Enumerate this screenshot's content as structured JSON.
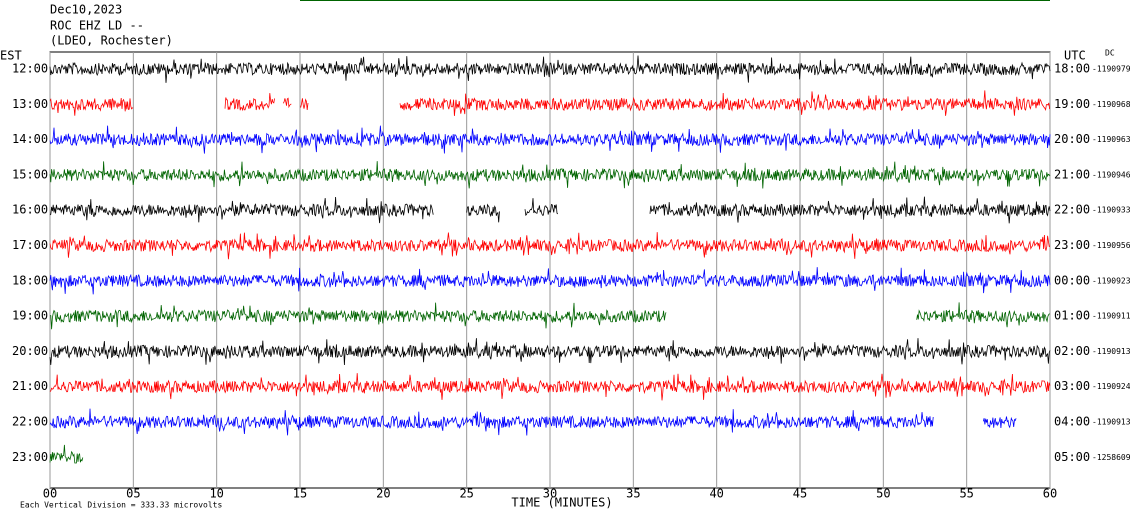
{
  "chart_data": {
    "type": "helicorder",
    "title_lines": [
      "Dec10,2023",
      "ROC EHZ LD --",
      "(LDEO, Rochester)"
    ],
    "left_axis_title": "EST",
    "right_axis_title": "UTC",
    "offset_title": "DC",
    "xlabel": "TIME (MINUTES)",
    "footer": "Each Vertical Division =  333.33 microvolts",
    "xlim": [
      0,
      60
    ],
    "xticks": [
      {
        "value": 0,
        "label": "00"
      },
      {
        "value": 5,
        "label": "05"
      },
      10,
      15,
      20,
      25,
      30,
      35,
      40,
      45,
      50,
      55,
      60
    ],
    "colors": [
      "#000000",
      "#ff0000",
      "#0000ff",
      "#006400"
    ],
    "rows": [
      {
        "left": "12:00",
        "right": "18:00",
        "offset": "-1190979",
        "segments": [
          [
            0,
            60
          ]
        ]
      },
      {
        "left": "13:00",
        "right": "19:00",
        "offset": "-1190968",
        "segments": [
          [
            0,
            5
          ],
          [
            10.5,
            13.5
          ],
          [
            14,
            14.5
          ],
          [
            15,
            15.5
          ],
          [
            21,
            60
          ]
        ]
      },
      {
        "left": "14:00",
        "right": "20:00",
        "offset": "-1190963",
        "segments": [
          [
            0,
            60
          ]
        ]
      },
      {
        "left": "15:00",
        "right": "21:00",
        "offset": "-1190946",
        "segments": [
          [
            0,
            60
          ]
        ]
      },
      {
        "left": "16:00",
        "right": "22:00",
        "offset": "-1190933",
        "segments": [
          [
            0,
            23
          ],
          [
            25,
            27
          ],
          [
            28.5,
            30.5
          ],
          [
            36,
            60
          ]
        ]
      },
      {
        "left": "17:00",
        "right": "23:00",
        "offset": "-1190956",
        "segments": [
          [
            0,
            60
          ]
        ]
      },
      {
        "left": "18:00",
        "right": "00:00",
        "offset": "-1190923",
        "segments": [
          [
            0,
            60
          ]
        ]
      },
      {
        "left": "19:00",
        "right": "01:00",
        "offset": "-1190911",
        "segments": [
          [
            0,
            37
          ],
          [
            52,
            60
          ]
        ]
      },
      {
        "left": "20:00",
        "right": "02:00",
        "offset": "-1190913",
        "segments": [
          [
            0,
            60
          ]
        ]
      },
      {
        "left": "21:00",
        "right": "03:00",
        "offset": "-1190924",
        "segments": [
          [
            0,
            60
          ]
        ]
      },
      {
        "left": "22:00",
        "right": "04:00",
        "offset": "-1190913",
        "segments": [
          [
            0,
            53
          ],
          [
            56,
            58
          ]
        ]
      },
      {
        "left": "23:00",
        "right": "05:00",
        "offset": "-1258609",
        "segments": [
          [
            0,
            2
          ]
        ]
      }
    ]
  }
}
